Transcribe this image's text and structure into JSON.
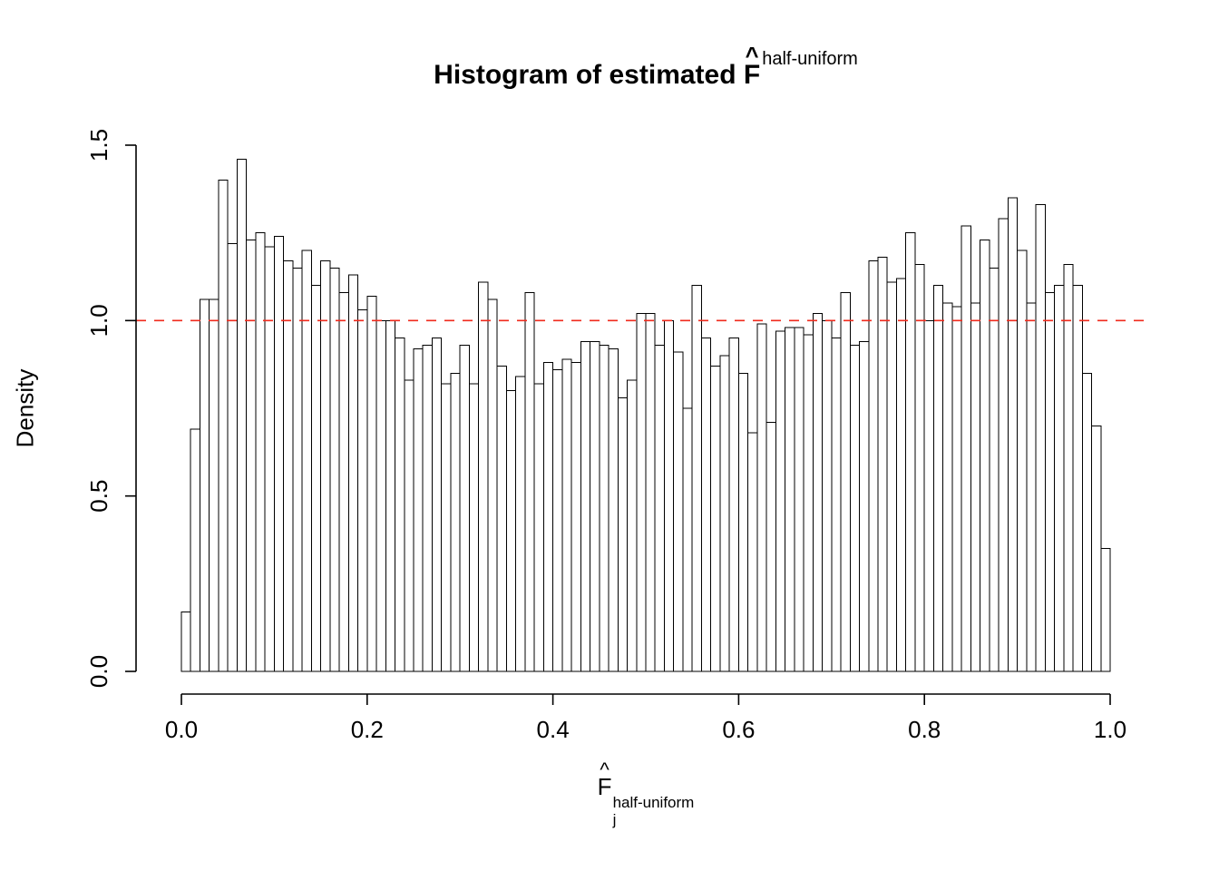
{
  "title": {
    "prefix": "Histogram of estimated",
    "symbol": "F",
    "hat": "^",
    "superscript": "half-uniform"
  },
  "x_axis_label": {
    "symbol": "F",
    "hat": "^",
    "subscript": "j",
    "superscript": "half-uniform"
  },
  "y_axis_label": "Density",
  "chart_data": {
    "type": "bar",
    "subtype": "histogram",
    "title": "Histogram of estimated F-hat^half-uniform",
    "xlabel": "F-hat_j^half-uniform",
    "ylabel": "Density",
    "xlim": [
      0,
      1
    ],
    "ylim": [
      0,
      1.5
    ],
    "grid": false,
    "legend": "none",
    "bin_width": 0.01,
    "bin_start": 0,
    "bar_fill": "#ffffff",
    "bar_stroke": "#000000",
    "x_tick_values": [
      0.0,
      0.2,
      0.4,
      0.6,
      0.8,
      1.0
    ],
    "x_tick_labels": [
      "0.0",
      "0.2",
      "0.4",
      "0.6",
      "0.8",
      "1.0"
    ],
    "y_tick_values": [
      0.0,
      0.5,
      1.0,
      1.5
    ],
    "y_tick_labels": [
      "0.0",
      "0.5",
      "1.0",
      "1.5"
    ],
    "reference_line": {
      "y": 1.0,
      "color": "#f02b1d",
      "style": "dashed"
    },
    "values": [
      0.17,
      0.69,
      1.06,
      1.06,
      1.4,
      1.22,
      1.46,
      1.23,
      1.25,
      1.21,
      1.24,
      1.17,
      1.15,
      1.2,
      1.1,
      1.17,
      1.15,
      1.08,
      1.13,
      1.03,
      1.07,
      1.0,
      1.0,
      0.95,
      0.83,
      0.92,
      0.93,
      0.95,
      0.82,
      0.85,
      0.93,
      0.82,
      1.11,
      1.06,
      0.87,
      0.8,
      0.84,
      1.08,
      0.82,
      0.88,
      0.86,
      0.89,
      0.88,
      0.94,
      0.94,
      0.93,
      0.92,
      0.78,
      0.83,
      1.02,
      1.02,
      0.93,
      1.0,
      0.91,
      0.75,
      1.1,
      0.95,
      0.87,
      0.9,
      0.95,
      0.85,
      0.68,
      0.99,
      0.71,
      0.97,
      0.98,
      0.98,
      0.96,
      1.02,
      1.0,
      0.95,
      1.08,
      0.93,
      0.94,
      1.17,
      1.18,
      1.11,
      1.12,
      1.25,
      1.16,
      1.0,
      1.1,
      1.05,
      1.04,
      1.27,
      1.05,
      1.23,
      1.15,
      1.29,
      1.35,
      1.2,
      1.05,
      1.33,
      1.08,
      1.1,
      1.16,
      1.1,
      0.85,
      0.7,
      0.35
    ]
  }
}
